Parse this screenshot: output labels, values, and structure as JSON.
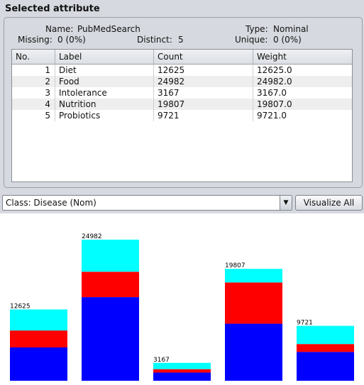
{
  "section_title": "Selected attribute",
  "attribute": {
    "name_label": "Name:",
    "name": "PubMedSearch",
    "type_label": "Type:",
    "type": "Nominal",
    "missing_label": "Missing:",
    "missing": "0 (0%)",
    "distinct_label": "Distinct:",
    "distinct": "5",
    "unique_label": "Unique:",
    "unique": "0 (0%)"
  },
  "table": {
    "headers": [
      "No.",
      "Label",
      "Count",
      "Weight"
    ],
    "rows": [
      {
        "no": "1",
        "label": "Diet",
        "count": "12625",
        "weight": "12625.0"
      },
      {
        "no": "2",
        "label": "Food",
        "count": "24982",
        "weight": "24982.0"
      },
      {
        "no": "3",
        "label": "Intolerance",
        "count": "3167",
        "weight": "3167.0"
      },
      {
        "no": "4",
        "label": "Nutrition",
        "count": "19807",
        "weight": "19807.0"
      },
      {
        "no": "5",
        "label": "Probiotics",
        "count": "9721",
        "weight": "9721.0"
      }
    ]
  },
  "class_selector": {
    "value": "Class: Disease (Nom)",
    "arrow_icon": "chevron-down-icon"
  },
  "visualize_all_label": "Visualize All",
  "chart_data": {
    "type": "bar",
    "stacked": true,
    "categories": [
      "Diet",
      "Food",
      "Intolerance",
      "Nutrition",
      "Probiotics"
    ],
    "totals": [
      12625,
      24982,
      3167,
      19807,
      9721
    ],
    "total_labels": [
      "12625",
      "24982",
      "3167",
      "19807",
      "9721"
    ],
    "series": [
      {
        "color": "#0000ff",
        "values": [
          5900,
          14800,
          1450,
          10100,
          5100
        ]
      },
      {
        "color": "#ff0000",
        "values": [
          3000,
          4500,
          600,
          7300,
          1400
        ]
      },
      {
        "color": "#00ffff",
        "values": [
          3725,
          5682,
          1117,
          2407,
          3221
        ]
      }
    ],
    "ylim": [
      0,
      24982
    ],
    "grid": false,
    "legend": "none"
  }
}
